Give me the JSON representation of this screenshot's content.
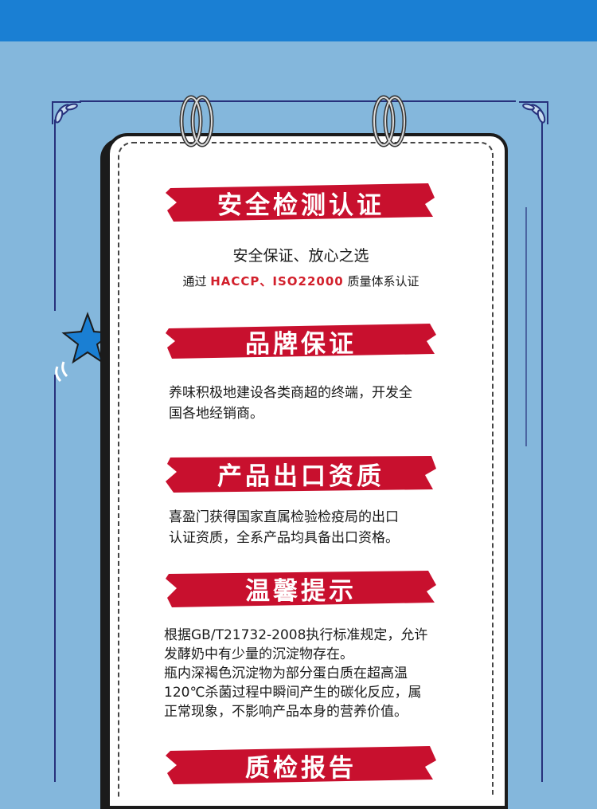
{
  "colors": {
    "band": "#1a7fd3",
    "background": "#84b7dc",
    "banner_red": "#c8102e",
    "line": "#27317c"
  },
  "sections": [
    {
      "title": "安全检测认证"
    },
    {
      "title": "品牌保证"
    },
    {
      "title": "产品出口资质"
    },
    {
      "title": "温馨提示"
    },
    {
      "title": "质检报告"
    }
  ],
  "safety": {
    "subtitle": "安全保证、放心之选",
    "cert_prefix": "通过 ",
    "cert_highlight": "HACCP、ISO22000",
    "cert_suffix": " 质量体系认证"
  },
  "brand": {
    "line1": "养味积极地建设各类商超的终端，开发全",
    "line2": "国各地经销商。"
  },
  "export": {
    "line1": "喜盈门获得国家直属检验检疫局的出口",
    "line2": "认证资质，全系产品均具备出口资格。"
  },
  "tips": {
    "line1": "根据GB/T21732-2008执行标准规定，允许",
    "line2": "发酵奶中有少量的沉淀物存在。",
    "line3": "瓶内深褐色沉淀物为部分蛋白质在超高温",
    "line4": "120℃杀菌过程中瞬间产生的碳化反应，属",
    "line5": "正常现象，不影响产品本身的营养价值。"
  },
  "icons": [
    "star-icon",
    "leaf-ornament-icon",
    "binder-ring-icon"
  ]
}
